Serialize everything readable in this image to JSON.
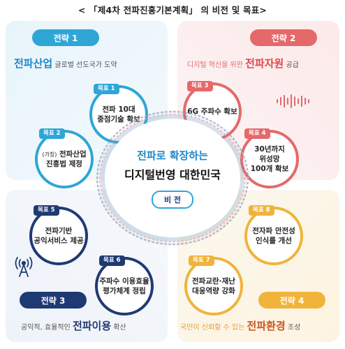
{
  "title": "< 「제4차 전파진흥기본계획」 의 비전 및 목표>",
  "center": {
    "line1": "전파로 확장하는",
    "line2": "디지털번영 대한민국",
    "vision_label": "비 전"
  },
  "strategies": [
    {
      "pill": "전략 1",
      "pre": "",
      "emph": "전파산업",
      "post": " 글로벌 선도국가 도약"
    },
    {
      "pill": "전략 2",
      "pre": "디지털 혁신을 위한 ",
      "emph": "전파자원",
      "post": " 공급"
    },
    {
      "pill": "전략 3",
      "pre": "공익적, 효율적인 ",
      "emph": "전파이용",
      "post": " 확산"
    },
    {
      "pill": "전략 4",
      "pre": "국민이 신뢰할 수 있는 ",
      "emph": "전파환경",
      "post": " 조성"
    }
  ],
  "goals": [
    {
      "tag": "목표 1",
      "text": "전파 10대\n중점기술 확보"
    },
    {
      "tag": "목표 2",
      "prefix": "(가칭)",
      "text": " 전파산업\n진흥법 제정"
    },
    {
      "tag": "목표 3",
      "text": "6G 주파수 확보"
    },
    {
      "tag": "목표 4",
      "text": "30년까지\n위성망\n100개 확보"
    },
    {
      "tag": "목표 5",
      "text": "전파기반\n공익서비스 제공"
    },
    {
      "tag": "목표 6",
      "text": "주파수 이용효율\n평가체계 정립"
    },
    {
      "tag": "목표 7",
      "text": "전파교란·재난\n대응역량 강화"
    },
    {
      "tag": "목표 8",
      "text": "전자파 안전성\n인식를 개선"
    }
  ],
  "colors": {
    "strategy1": "#2fa6d6",
    "strategy2": "#e5686b",
    "strategy3": "#1f3a72",
    "strategy4": "#f0b43a"
  },
  "icons": [
    "sound-wave-icon",
    "antenna-icon"
  ]
}
